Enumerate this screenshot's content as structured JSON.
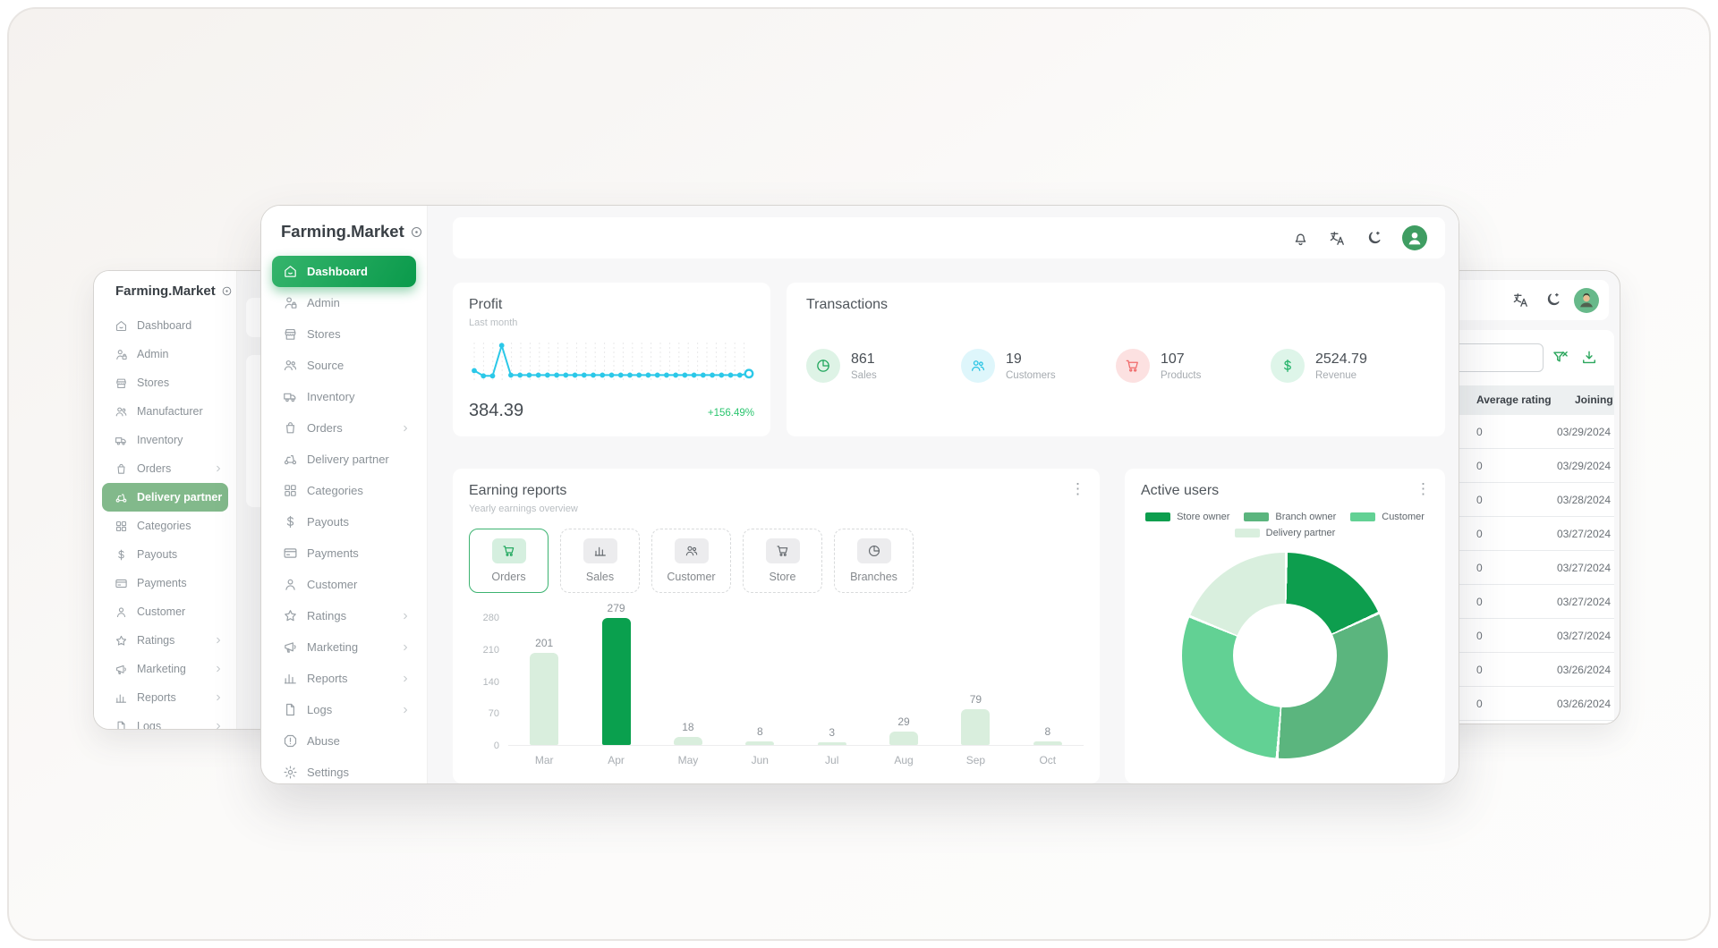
{
  "colors": {
    "accent_green": "#0f9d4f",
    "active_gradient": [
      "#35b46c",
      "#0a9a4b"
    ],
    "muted_green_selected": "#82b98b",
    "sparkline_cyan": "#2bc8e8",
    "positive_green": "#2bc56f",
    "bar_pale_green": "#d9eedd",
    "bar_dark_green": "#0aa04e",
    "icon_red": "#f06a6a"
  },
  "left_window": {
    "brand": "Farming.Market",
    "nav": [
      {
        "label": "Dashboard",
        "icon": "home"
      },
      {
        "label": "Admin",
        "icon": "user-lock"
      },
      {
        "label": "Stores",
        "icon": "store"
      },
      {
        "label": "Manufacturer",
        "icon": "users"
      },
      {
        "label": "Inventory",
        "icon": "truck"
      },
      {
        "label": "Orders",
        "icon": "bag",
        "chevron": true
      },
      {
        "label": "Delivery partner",
        "icon": "scooter",
        "active": true
      },
      {
        "label": "Categories",
        "icon": "grid"
      },
      {
        "label": "Payouts",
        "icon": "dollar"
      },
      {
        "label": "Payments",
        "icon": "card"
      },
      {
        "label": "Customer",
        "icon": "user"
      },
      {
        "label": "Ratings",
        "icon": "star",
        "chevron": true
      },
      {
        "label": "Marketing",
        "icon": "megaphone",
        "chevron": true
      },
      {
        "label": "Reports",
        "icon": "chart",
        "chevron": true
      },
      {
        "label": "Logs",
        "icon": "file",
        "chevron": true
      }
    ]
  },
  "center_window": {
    "brand": "Farming.Market",
    "nav": [
      {
        "label": "Dashboard",
        "icon": "home",
        "active": true
      },
      {
        "label": "Admin",
        "icon": "user-lock"
      },
      {
        "label": "Stores",
        "icon": "store"
      },
      {
        "label": "Source",
        "icon": "users"
      },
      {
        "label": "Inventory",
        "icon": "truck"
      },
      {
        "label": "Orders",
        "icon": "bag",
        "chevron": true
      },
      {
        "label": "Delivery partner",
        "icon": "scooter"
      },
      {
        "label": "Categories",
        "icon": "grid"
      },
      {
        "label": "Payouts",
        "icon": "dollar"
      },
      {
        "label": "Payments",
        "icon": "card"
      },
      {
        "label": "Customer",
        "icon": "user"
      },
      {
        "label": "Ratings",
        "icon": "star",
        "chevron": true
      },
      {
        "label": "Marketing",
        "icon": "megaphone",
        "chevron": true
      },
      {
        "label": "Reports",
        "icon": "chart",
        "chevron": true
      },
      {
        "label": "Logs",
        "icon": "file",
        "chevron": true
      },
      {
        "label": "Abuse",
        "icon": "alert"
      },
      {
        "label": "Settings",
        "icon": "gear"
      }
    ],
    "topbar_icons": [
      "bell",
      "translate",
      "moon"
    ],
    "profit": {
      "title": "Profit",
      "subtitle": "Last month",
      "value": "384.39",
      "delta": "+156.49%"
    },
    "transactions": {
      "title": "Transactions",
      "stats": [
        {
          "value": "861",
          "label": "Sales",
          "icon": "pie",
          "fg": "#1ea55b",
          "bg": "#def3e6"
        },
        {
          "value": "19",
          "label": "Customers",
          "icon": "users",
          "fg": "#25c3e3",
          "bg": "#def6fb"
        },
        {
          "value": "107",
          "label": "Products",
          "icon": "cart",
          "fg": "#f06a6a",
          "bg": "#fce1e1"
        },
        {
          "value": "2524.79",
          "label": "Revenue",
          "icon": "dollar",
          "fg": "#22b268",
          "bg": "#def5e9"
        }
      ]
    },
    "earning_reports": {
      "title": "Earning reports",
      "subtitle": "Yearly earnings overview",
      "tabs": [
        {
          "label": "Orders",
          "icon": "cart",
          "active": true
        },
        {
          "label": "Sales",
          "icon": "chart"
        },
        {
          "label": "Customer",
          "icon": "users"
        },
        {
          "label": "Store",
          "icon": "cart"
        },
        {
          "label": "Branches",
          "icon": "pie"
        }
      ]
    },
    "active_users": {
      "title": "Active users"
    }
  },
  "right_window": {
    "topbar_icons": [
      "translate",
      "moon"
    ],
    "table": {
      "headers": [
        "Average rating",
        "Joining date"
      ],
      "rows": [
        [
          "0",
          "03/29/2024"
        ],
        [
          "0",
          "03/29/2024"
        ],
        [
          "0",
          "03/28/2024"
        ],
        [
          "0",
          "03/27/2024"
        ],
        [
          "0",
          "03/27/2024"
        ],
        [
          "0",
          "03/27/2024"
        ],
        [
          "0",
          "03/27/2024"
        ],
        [
          "0",
          "03/26/2024"
        ],
        [
          "0",
          "03/26/2024"
        ]
      ]
    }
  },
  "chart_data": [
    {
      "type": "line",
      "name": "profit-sparkline",
      "title": "Profit",
      "subtitle": "Last month",
      "values": [
        30,
        16,
        16,
        97,
        18,
        18,
        18,
        18,
        18,
        18,
        18,
        18,
        18,
        18,
        18,
        18,
        18,
        18,
        18,
        18,
        18,
        18,
        18,
        18,
        18,
        18,
        18,
        18,
        18,
        18,
        22
      ],
      "color": "#2bc8e8",
      "last_point_hollow": true
    },
    {
      "type": "bar",
      "name": "earning-reports-orders",
      "title": "Earning reports",
      "categories": [
        "Mar",
        "Apr",
        "May",
        "Jun",
        "Jul",
        "Aug",
        "Sep",
        "Oct"
      ],
      "values": [
        201,
        279,
        18,
        8,
        3,
        29,
        79,
        8
      ],
      "ylim": [
        0,
        280
      ],
      "yticks": [
        0,
        70,
        140,
        210,
        280
      ],
      "highlight_index": 1,
      "bar_color": "#d9eedd",
      "highlight_color": "#0aa04e"
    },
    {
      "type": "pie",
      "name": "active-users-donut",
      "title": "Active users",
      "labels": [
        "Store owner",
        "Branch owner",
        "Customer",
        "Delivery partner"
      ],
      "values": [
        18,
        33,
        30,
        19
      ],
      "colors": [
        "#0d9e4e",
        "#5bb57e",
        "#62d194",
        "#d9efde"
      ],
      "legend_position": "top",
      "donut": true
    }
  ]
}
